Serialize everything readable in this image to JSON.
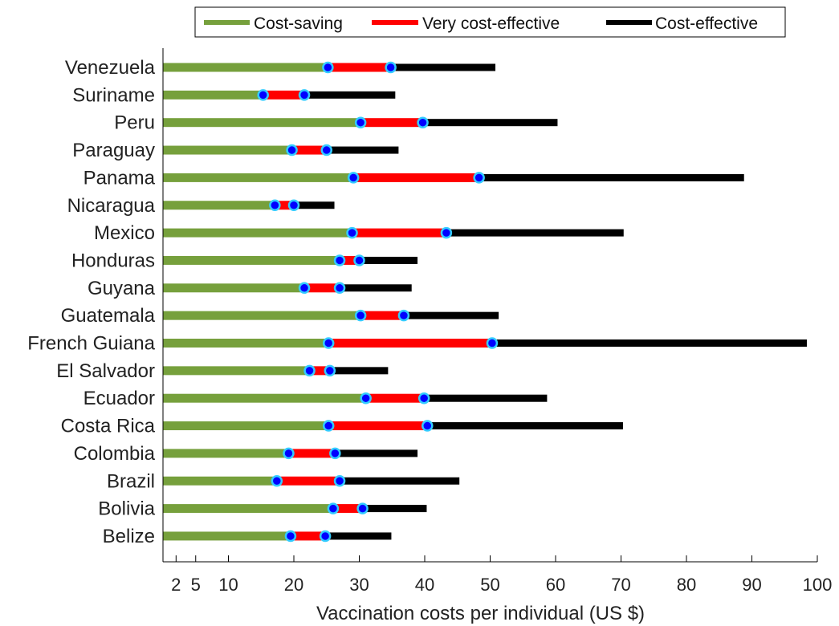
{
  "chart_data": {
    "type": "bar",
    "orientation": "horizontal-stacked-range",
    "xlabel": "Vaccination costs per individual (US $)",
    "xlim": [
      0,
      100
    ],
    "xticks": [
      2,
      5,
      10,
      20,
      30,
      40,
      50,
      60,
      70,
      80,
      90,
      100
    ],
    "xtick_labels": [
      "2",
      "5",
      "10",
      "20",
      "30",
      "40",
      "50",
      "60",
      "70",
      "80",
      "90",
      "100"
    ],
    "grid": false,
    "legend_position": "top",
    "series": [
      {
        "name": "Cost-saving",
        "color": "#76a03c"
      },
      {
        "name": "Very cost-effective",
        "color": "#ff0000"
      },
      {
        "name": "Cost-effective",
        "color": "#000000"
      }
    ],
    "marker_color": "#0000ff",
    "marker_edge_color": "#33ccff",
    "categories": [
      "Venezuela",
      "Suriname",
      "Peru",
      "Paraguay",
      "Panama",
      "Nicaragua",
      "Mexico",
      "Honduras",
      "Guyana",
      "Guatemala",
      "French Guiana",
      "El Salvador",
      "Ecuador",
      "Costa Rica",
      "Colombia",
      "Brazil",
      "Bolivia",
      "Belize"
    ],
    "cost_saving_max": [
      25.2,
      15.3,
      30.2,
      19.7,
      29.1,
      17.1,
      28.9,
      27.0,
      21.6,
      30.2,
      25.3,
      22.4,
      31.0,
      25.3,
      19.2,
      17.4,
      26.0,
      19.5
    ],
    "very_cost_effective_max": [
      34.8,
      21.6,
      39.7,
      25.0,
      48.3,
      20.0,
      43.3,
      30.0,
      27.0,
      36.8,
      50.3,
      25.5,
      39.9,
      40.4,
      26.3,
      27.0,
      30.5,
      24.8
    ],
    "cost_effective_max": [
      50.8,
      35.5,
      60.3,
      36.0,
      88.8,
      26.2,
      70.4,
      38.9,
      38.0,
      51.3,
      98.4,
      34.4,
      58.7,
      70.3,
      38.9,
      45.3,
      40.3,
      34.9
    ]
  }
}
